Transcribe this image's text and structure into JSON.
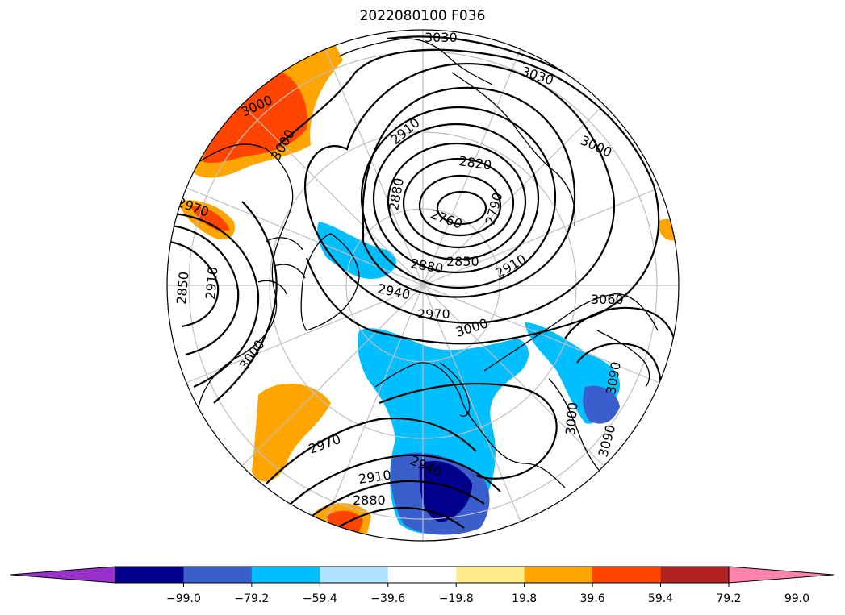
{
  "title": "2022080100 F036",
  "contour_labels": [
    "3030",
    "3030",
    "3000",
    "3000",
    "2910",
    "2820",
    "2880",
    "2760",
    "2790",
    "2850",
    "2880",
    "2910",
    "2940",
    "2970",
    "3000",
    "3060",
    "3000",
    "2970",
    "2850",
    "2910",
    "3000",
    "3000",
    "2970",
    "2910",
    "2880",
    "2940",
    "3090",
    "3090"
  ],
  "colorbar": {
    "ticks": [
      "−99.0",
      "−79.2",
      "−59.4",
      "−39.6",
      "−19.8",
      "19.8",
      "39.6",
      "59.4",
      "79.2",
      "99.0"
    ],
    "colors": [
      "#9932cc",
      "#00008b",
      "#3a5fcd",
      "#00bfff",
      "#b0e2ff",
      "#ffffff",
      "#ffec8b",
      "#ffa500",
      "#ff4500",
      "#b22222",
      "#ff82ab"
    ]
  },
  "colors": {
    "land_outline": "#000000",
    "contour": "#000000",
    "grid": "#bfbfbf"
  }
}
